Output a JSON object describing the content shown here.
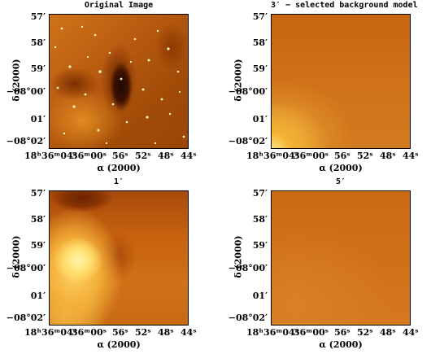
{
  "panels": [
    {
      "title": "Original Image"
    },
    {
      "title": "3′ − selected background model"
    },
    {
      "title": "1′"
    },
    {
      "title": "5′"
    }
  ],
  "axes": {
    "xlabel": "α (2000)",
    "ylabel": "δ (2000)",
    "xticks": [
      "18ʰ36ᵐ04ˢ",
      "36ᵐ00ˢ",
      "56ˢ",
      "52ˢ",
      "48ˢ",
      "44ˢ"
    ],
    "yticks": [
      "57′",
      "58′",
      "59′",
      "−08°00′",
      "01′",
      "−08°02′"
    ]
  },
  "colors": {
    "dark": "#8a3300",
    "mid": "#c8680e",
    "light": "#f2b233",
    "bright": "#fff5a0"
  }
}
